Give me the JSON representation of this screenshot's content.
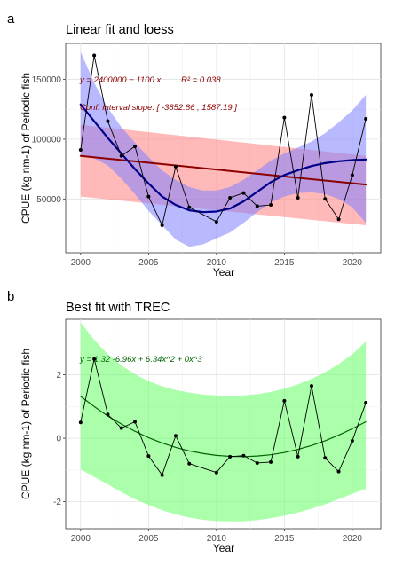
{
  "chart_data": [
    {
      "panel_label": "a",
      "type": "line",
      "title": "Linear fit and loess",
      "xlabel": "Year",
      "ylabel": "CPUE (kg nm-1) of Periodic fish",
      "xlim": [
        1998.9,
        2022.1
      ],
      "ylim": [
        5000,
        180000
      ],
      "x_ticks": [
        2000,
        2005,
        2010,
        2015,
        2020
      ],
      "y_ticks": [
        50000,
        100000,
        150000
      ],
      "grid": true,
      "annotations": [
        {
          "text": "y = 2400000 − 1100 x",
          "color": "#8b0000"
        },
        {
          "text": "R² = 0.038",
          "color": "#8b0000"
        },
        {
          "text": "Conf. interval slope:  [ -3852.86 ; 1587.19 ]",
          "color": "#8b0000"
        }
      ],
      "observed": {
        "x": [
          2000,
          2001,
          2002,
          2003,
          2004,
          2005,
          2006,
          2007,
          2008,
          2010,
          2011,
          2012,
          2013,
          2014,
          2015,
          2016,
          2017,
          2018,
          2019,
          2020,
          2021
        ],
        "y": [
          91000,
          170000,
          115000,
          86000,
          94000,
          52000,
          28000,
          77000,
          43000,
          31000,
          51000,
          55000,
          44000,
          45000,
          118000,
          51000,
          137000,
          50000,
          33000,
          70000,
          117000
        ],
        "color": "#000000"
      },
      "linear_fit": {
        "x": [
          2000,
          2021
        ],
        "y": [
          86000,
          62000
        ],
        "ci_upper": [
          112000,
          86000
        ],
        "ci_lower": [
          52000,
          28000
        ],
        "color": "#8b0000",
        "band_color": "#ff7f7f"
      },
      "loess_fit": {
        "x": [
          2000,
          2001,
          2002,
          2003,
          2004,
          2005,
          2006,
          2007,
          2008,
          2009,
          2010,
          2011,
          2012,
          2013,
          2014,
          2015,
          2016,
          2017,
          2018,
          2019,
          2020,
          2021
        ],
        "y": [
          129000,
          115000,
          101000,
          88000,
          75000,
          63000,
          52000,
          45000,
          40500,
          39000,
          39500,
          42000,
          48000,
          56000,
          64000,
          70000,
          74000,
          77500,
          80000,
          81500,
          82500,
          83000
        ],
        "ci_upper": [
          173000,
          147000,
          126000,
          110000,
          97000,
          85000,
          74000,
          66000,
          60000,
          57000,
          57000,
          60000,
          66000,
          74000,
          82000,
          88000,
          93000,
          98000,
          105000,
          114000,
          124000,
          137000
        ],
        "ci_lower": [
          86000,
          84000,
          78000,
          67000,
          54000,
          40000,
          28000,
          16000,
          10000,
          12000,
          17000,
          22000,
          30000,
          39000,
          47000,
          52000,
          55000,
          55500,
          54000,
          50000,
          43000,
          30000
        ],
        "color": "#00008b",
        "band_color": "#7f7fff"
      }
    },
    {
      "panel_label": "b",
      "type": "line",
      "title": "Best fit with TREC",
      "xlabel": "Year",
      "ylabel": "CPUE (kg nm-1) of Periodic fish",
      "xlim": [
        1998.9,
        2022.1
      ],
      "ylim": [
        -2.85,
        3.75
      ],
      "x_ticks": [
        2000,
        2005,
        2010,
        2015,
        2020
      ],
      "y_ticks": [
        -2,
        0,
        2
      ],
      "grid": true,
      "annotations": [
        {
          "text": "y = 1.32   -6.96x  + 6.34x^2  + 0x^3",
          "color": "#006400"
        }
      ],
      "observed": {
        "x": [
          2000,
          2001,
          2002,
          2003,
          2004,
          2005,
          2006,
          2007,
          2008,
          2010,
          2011,
          2012,
          2013,
          2014,
          2015,
          2016,
          2017,
          2018,
          2019,
          2020,
          2021
        ],
        "y": [
          0.5,
          2.5,
          0.75,
          0.32,
          0.52,
          -0.56,
          -1.16,
          0.08,
          -0.8,
          -1.08,
          -0.58,
          -0.55,
          -0.78,
          -0.75,
          1.18,
          -0.58,
          1.65,
          -0.62,
          -1.05,
          -0.08,
          1.12
        ],
        "color": "#000000"
      },
      "poly_fit": {
        "x": [
          2000,
          2001,
          2002,
          2003,
          2004,
          2005,
          2006,
          2007,
          2008,
          2009,
          2010,
          2011,
          2012,
          2013,
          2014,
          2015,
          2016,
          2017,
          2018,
          2019,
          2020,
          2021
        ],
        "y": [
          1.32,
          1.0,
          0.7,
          0.45,
          0.22,
          0.02,
          -0.15,
          -0.29,
          -0.4,
          -0.48,
          -0.54,
          -0.57,
          -0.58,
          -0.56,
          -0.52,
          -0.45,
          -0.35,
          -0.23,
          -0.08,
          0.1,
          0.3,
          0.52
        ],
        "ci_upper": [
          3.65,
          3.1,
          2.65,
          2.3,
          2.02,
          1.8,
          1.64,
          1.52,
          1.44,
          1.38,
          1.35,
          1.34,
          1.35,
          1.39,
          1.46,
          1.56,
          1.7,
          1.87,
          2.08,
          2.34,
          2.65,
          3.05
        ],
        "ci_lower": [
          -0.98,
          -1.22,
          -1.45,
          -1.7,
          -1.92,
          -2.1,
          -2.27,
          -2.4,
          -2.5,
          -2.57,
          -2.61,
          -2.62,
          -2.62,
          -2.58,
          -2.52,
          -2.44,
          -2.34,
          -2.22,
          -2.08,
          -1.92,
          -1.75,
          -1.6
        ],
        "color": "#006400",
        "band_color": "#66ff66"
      }
    }
  ]
}
